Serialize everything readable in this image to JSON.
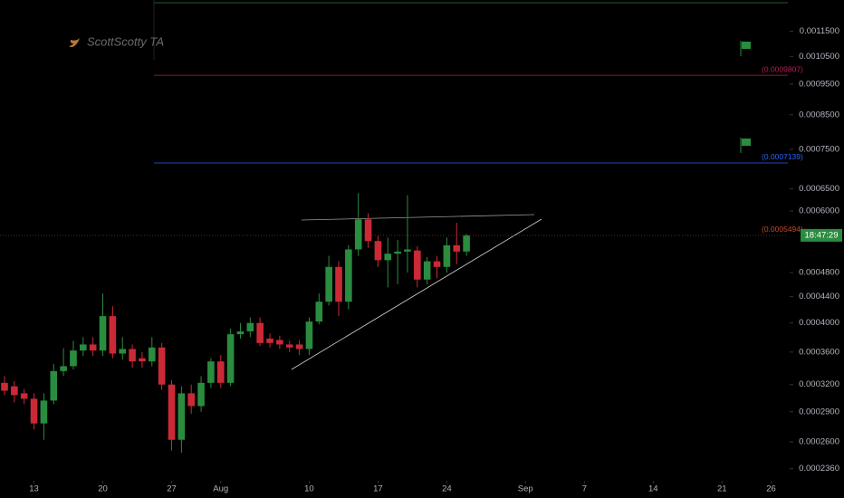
{
  "chart_data": {
    "type": "candlestick",
    "watermark": "ScottScotty TA",
    "log_scale": true,
    "up_color": "#2a8c3f",
    "down_color": "#cc2936",
    "x": [
      0,
      1,
      2,
      3,
      4,
      5,
      6,
      7,
      8,
      9,
      10,
      11,
      12,
      13,
      14,
      15,
      16,
      17,
      18,
      19,
      20,
      21,
      22,
      23,
      24,
      25,
      26,
      27,
      28,
      29,
      30,
      31,
      32,
      33,
      34,
      35,
      36,
      37,
      38,
      39,
      40,
      41,
      42,
      43,
      44,
      45,
      46,
      47
    ],
    "open": [
      0.000322,
      0.000318,
      0.00031,
      0.000304,
      0.000278,
      0.000302,
      0.000336,
      0.000342,
      0.000362,
      0.00037,
      0.000362,
      0.00041,
      0.000358,
      0.000364,
      0.000352,
      0.000348,
      0.000366,
      0.00032,
      0.000262,
      0.00031,
      0.000296,
      0.000322,
      0.000348,
      0.000322,
      0.000384,
      0.000388,
      0.0004,
      0.000378,
      0.000376,
      0.00037,
      0.00037,
      0.000364,
      0.000402,
      0.000432,
      0.00049,
      0.000432,
      0.000522,
      0.000582,
      0.000538,
      0.000502,
      0.000514,
      0.000518,
      0.00052,
      0.000468,
      0.0005,
      0.00049,
      0.00053,
      0.000518
    ],
    "high": [
      0.00033,
      0.000324,
      0.000315,
      0.00031,
      0.00031,
      0.000345,
      0.000365,
      0.000375,
      0.00038,
      0.00038,
      0.000445,
      0.000425,
      0.00038,
      0.00037,
      0.00036,
      0.00038,
      0.000372,
      0.000325,
      0.000318,
      0.00032,
      0.00033,
      0.000352,
      0.000356,
      0.000392,
      0.0004,
      0.000408,
      0.000408,
      0.000385,
      0.000382,
      0.000375,
      0.000376,
      0.000408,
      0.000445,
      0.00051,
      0.0005,
      0.00053,
      0.00064,
      0.000595,
      0.000548,
      0.000545,
      0.00054,
      0.000635,
      0.000528,
      0.000508,
      0.00051,
      0.000545,
      0.000575,
      0.000552
    ],
    "low": [
      0.000308,
      0.0003,
      0.000298,
      0.000272,
      0.000262,
      0.000298,
      0.00033,
      0.000338,
      0.000355,
      0.000355,
      0.000355,
      0.000352,
      0.00035,
      0.00034,
      0.00034,
      0.000342,
      0.000314,
      0.000252,
      0.00025,
      0.000288,
      0.00029,
      0.000316,
      0.000316,
      0.000318,
      0.000378,
      0.00038,
      0.000368,
      0.000366,
      0.000364,
      0.00036,
      0.000356,
      0.000356,
      0.000398,
      0.000426,
      0.00041,
      0.00042,
      0.00051,
      0.000525,
      0.00049,
      0.000455,
      0.00046,
      0.00048,
      0.000455,
      0.00046,
      0.00047,
      0.00048,
      0.000495,
      0.00051
    ],
    "close": [
      0.000313,
      0.000308,
      0.000304,
      0.000278,
      0.000302,
      0.000336,
      0.000342,
      0.000362,
      0.00037,
      0.000362,
      0.00041,
      0.000358,
      0.000364,
      0.000348,
      0.000348,
      0.000366,
      0.00032,
      0.000262,
      0.00031,
      0.000296,
      0.000322,
      0.000348,
      0.000322,
      0.000384,
      0.000388,
      0.0004,
      0.000372,
      0.000372,
      0.00037,
      0.000366,
      0.000364,
      0.000402,
      0.000432,
      0.00049,
      0.000432,
      0.000522,
      0.000582,
      0.000538,
      0.000502,
      0.000514,
      0.000518,
      0.000522,
      0.000468,
      0.0005,
      0.00049,
      0.00053,
      0.000518,
      0.000549
    ],
    "xlim": [
      -0.46,
      79.7
    ],
    "xticks": [
      {
        "value": 3,
        "label": "13"
      },
      {
        "value": 10,
        "label": "20"
      },
      {
        "value": 17,
        "label": "27"
      },
      {
        "value": 22,
        "label": "Aug"
      },
      {
        "value": 31,
        "label": "10"
      },
      {
        "value": 38,
        "label": "17"
      },
      {
        "value": 45,
        "label": "24"
      },
      {
        "value": 53,
        "label": "Sep"
      },
      {
        "value": 59,
        "label": "7"
      },
      {
        "value": 66,
        "label": "14"
      },
      {
        "value": 73,
        "label": "21"
      },
      {
        "value": 78,
        "label": "26"
      }
    ],
    "ylim": [
      0.0002266,
      0.001288
    ],
    "yticks": [
      {
        "value": 0.00115,
        "label": "0.0011500"
      },
      {
        "value": 0.00105,
        "label": "0.0010500"
      },
      {
        "value": 0.00095,
        "label": "0.0009500"
      },
      {
        "value": 0.00085,
        "label": "0.0008500"
      },
      {
        "value": 0.00075,
        "label": "0.0007500"
      },
      {
        "value": 0.00065,
        "label": "0.0006500"
      },
      {
        "value": 0.0006,
        "label": "0.0006000"
      },
      {
        "value": 0.00048,
        "label": "0.0004800"
      },
      {
        "value": 0.00044,
        "label": "0.0004400"
      },
      {
        "value": 0.0004,
        "label": "0.0004000"
      },
      {
        "value": 0.00036,
        "label": "0.0003600"
      },
      {
        "value": 0.00032,
        "label": "0.0003200"
      },
      {
        "value": 0.00029,
        "label": "0.0002900"
      },
      {
        "value": 0.00026,
        "label": "0.0002600"
      },
      {
        "value": 0.000236,
        "label": "0.0002360"
      }
    ],
    "levels": [
      {
        "value": 0.0009807,
        "label": "(0.0009807)",
        "color": "#c2185b"
      },
      {
        "value": 0.0007139,
        "label": "(0.0007139)",
        "color": "#2962ff"
      }
    ],
    "last_price": {
      "value": 0.0005494,
      "label": "(0.0005494)",
      "color": "#c24a2a"
    },
    "countdown": "18:47:29"
  }
}
